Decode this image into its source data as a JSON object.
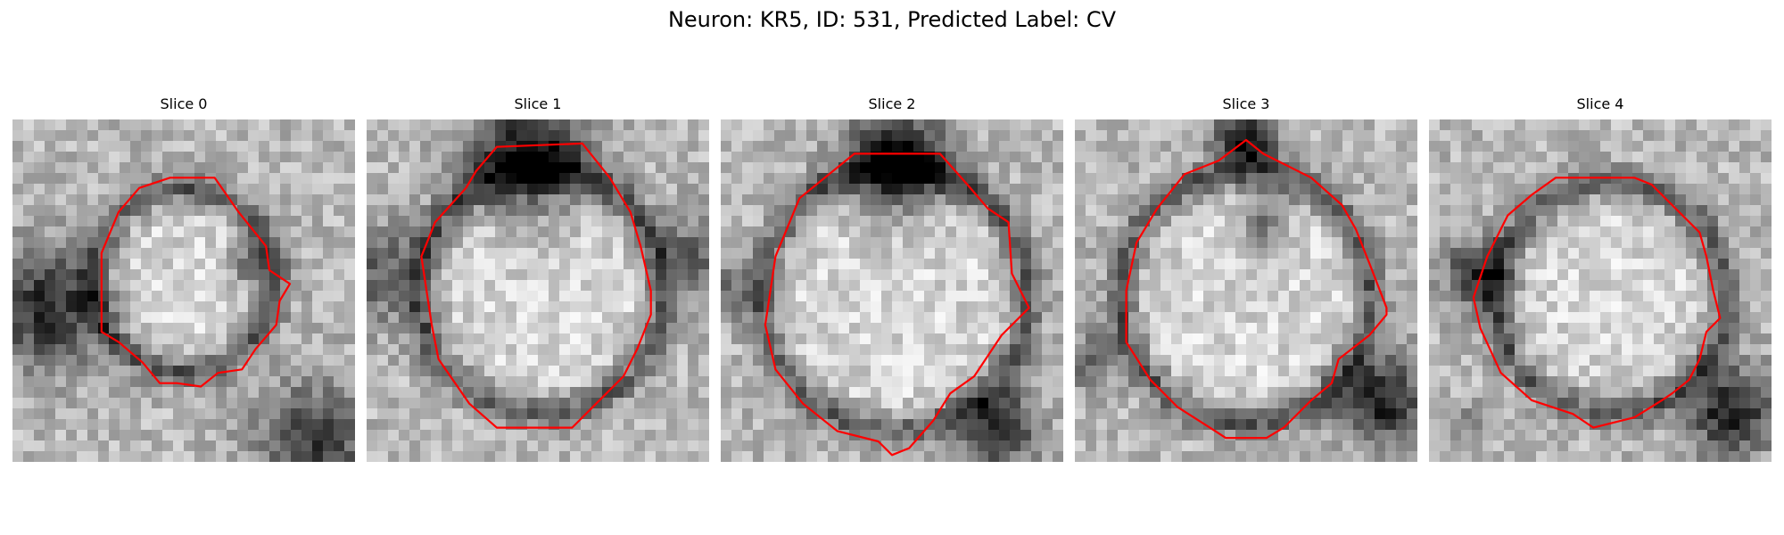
{
  "figure": {
    "title": "Neuron: KR5, ID: 531, Predicted Label: CV",
    "contour_color": "#ff0000",
    "colormap": "grayscale",
    "panels": [
      {
        "title": "Slice 0"
      },
      {
        "title": "Slice 1"
      },
      {
        "title": "Slice 2"
      },
      {
        "title": "Slice 3"
      },
      {
        "title": "Slice 4"
      }
    ]
  }
}
